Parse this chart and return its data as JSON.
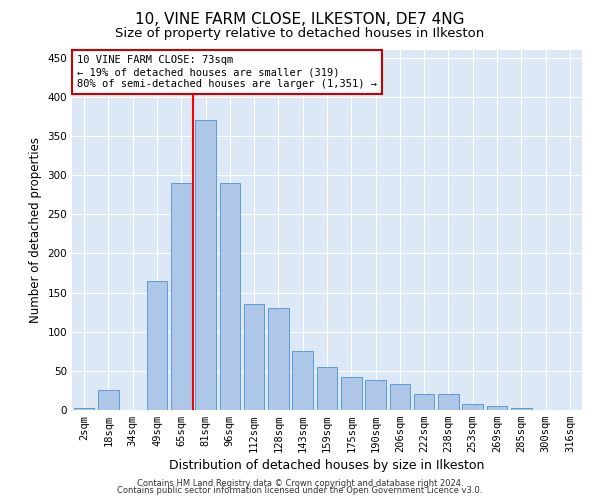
{
  "title": "10, VINE FARM CLOSE, ILKESTON, DE7 4NG",
  "subtitle": "Size of property relative to detached houses in Ilkeston",
  "xlabel": "Distribution of detached houses by size in Ilkeston",
  "ylabel": "Number of detached properties",
  "categories": [
    "2sqm",
    "18sqm",
    "34sqm",
    "49sqm",
    "65sqm",
    "81sqm",
    "96sqm",
    "112sqm",
    "128sqm",
    "143sqm",
    "159sqm",
    "175sqm",
    "190sqm",
    "206sqm",
    "222sqm",
    "238sqm",
    "253sqm",
    "269sqm",
    "285sqm",
    "300sqm",
    "316sqm"
  ],
  "bar_heights": [
    2,
    25,
    0,
    165,
    290,
    370,
    290,
    135,
    130,
    75,
    55,
    42,
    38,
    33,
    20,
    20,
    8,
    5,
    2,
    0,
    0
  ],
  "bar_color": "#aec6e8",
  "bar_edge_color": "#5b9bd5",
  "annotation_text1": "10 VINE FARM CLOSE: 73sqm",
  "annotation_text2": "← 19% of detached houses are smaller (319)",
  "annotation_text3": "80% of semi-detached houses are larger (1,351) →",
  "annotation_box_edge": "#cc0000",
  "footer1": "Contains HM Land Registry data © Crown copyright and database right 2024.",
  "footer2": "Contains public sector information licensed under the Open Government Licence v3.0.",
  "background_color": "#dce8f5",
  "ylim": [
    0,
    460
  ],
  "title_fontsize": 11,
  "subtitle_fontsize": 9.5,
  "tick_fontsize": 7.5,
  "ylabel_fontsize": 8.5,
  "xlabel_fontsize": 9,
  "footer_fontsize": 6,
  "annotation_fontsize": 7.5
}
